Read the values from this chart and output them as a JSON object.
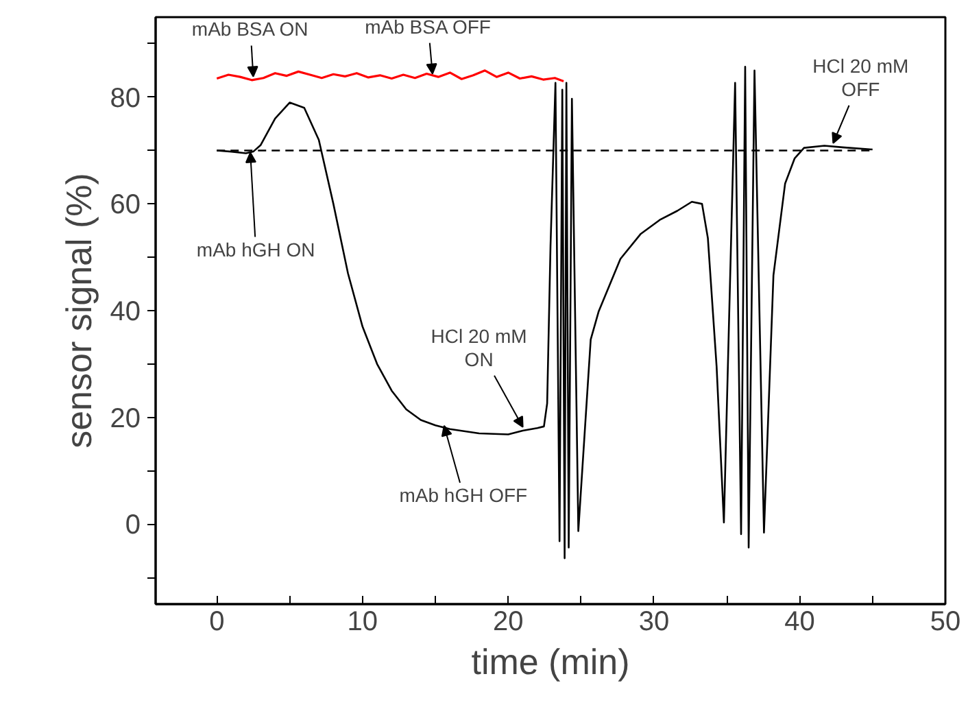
{
  "chart_data": {
    "type": "line",
    "xlabel": "time (min)",
    "ylabel": "sensor signal (%)",
    "xlim": [
      -4.2,
      50
    ],
    "ylim": [
      -15,
      95
    ],
    "xticks": [
      0,
      {
        "value": 5,
        "label": null
      },
      10,
      {
        "value": 15,
        "label": null
      },
      20,
      {
        "value": 25,
        "label": null
      },
      30,
      {
        "value": 35,
        "label": null
      },
      40,
      {
        "value": 45,
        "label": null
      },
      50
    ],
    "yticks": [
      {
        "value": -10,
        "label": null
      },
      0,
      {
        "value": 10,
        "label": null
      },
      20,
      {
        "value": 30,
        "label": null
      },
      40,
      {
        "value": 50,
        "label": null
      },
      60,
      {
        "value": 70,
        "label": null
      },
      80,
      {
        "value": 90,
        "label": null
      }
    ],
    "grid": false,
    "marker": "none",
    "line_style": "solid",
    "series": [
      {
        "color": "#ff0000",
        "x": [
          0,
          0.8,
          1.6,
          2.4,
          3.2,
          4,
          4.8,
          5.6,
          6.4,
          7.2,
          8,
          8.8,
          9.6,
          10.4,
          11.2,
          12,
          12.8,
          13.6,
          14.4,
          15.2,
          16,
          16.8,
          17.6,
          18.4,
          19.2,
          20,
          20.8,
          21.6,
          22.4,
          23.2,
          23.8
        ],
        "values": [
          83.5,
          84.2,
          83.8,
          83.2,
          83.6,
          84.5,
          84,
          84.8,
          84.2,
          83.6,
          84.3,
          83.9,
          84.5,
          83.7,
          84.1,
          83.5,
          84.2,
          83.6,
          84.4,
          83.8,
          84.6,
          83.4,
          84.1,
          85,
          83.8,
          84.6,
          83.5,
          83.9,
          83.3,
          83.6,
          83
        ]
      },
      {
        "color": "#000000",
        "x": [
          0,
          1,
          2,
          2.5,
          3,
          4,
          5,
          6,
          7,
          8,
          9,
          10,
          11,
          12,
          13,
          14,
          15,
          16,
          18,
          20,
          21,
          22,
          22.45,
          22.67,
          22.9,
          23.24,
          23.52,
          23.71,
          23.87,
          23.99,
          24.15,
          24.37,
          24.81,
          25.66,
          26.2,
          27.7,
          29.1,
          30.4,
          31.6,
          32.6,
          33.3,
          33.7,
          34.3,
          34.8,
          35.57,
          35.98,
          36.26,
          36.5,
          36.9,
          37.55,
          38.2,
          39.0,
          39.65,
          40.3,
          41.7,
          42.95,
          45
        ],
        "values": [
          70,
          69.8,
          69.5,
          69.8,
          71,
          76,
          79,
          78,
          72,
          60,
          47,
          37,
          30,
          25,
          21.5,
          19.5,
          18.5,
          17.8,
          17,
          16.8,
          17.5,
          18,
          18.3,
          22.6,
          52,
          82.7,
          -3.2,
          81.4,
          -6.4,
          82.7,
          -4.4,
          79.7,
          -1.3,
          34.6,
          39.8,
          49.7,
          54.4,
          57,
          58.7,
          60.4,
          60,
          53.6,
          29.5,
          0.3,
          82.7,
          -1.9,
          85.7,
          -4.4,
          85,
          -1.6,
          46.6,
          63.8,
          68.5,
          70.5,
          70.9,
          70.6,
          70.2
        ]
      }
    ],
    "ref_lines": [
      {
        "axis": "y",
        "value": 70,
        "color": "#000000",
        "line_style": "dashed"
      }
    ],
    "annotations": [
      {
        "text": "mAb BSA ON",
        "x": 2.5,
        "y": 83.5
      },
      {
        "text": "mAb BSA OFF",
        "x": 14.8,
        "y": 84
      },
      {
        "text": "mAb hGH ON",
        "x": 2.3,
        "y": 70
      },
      {
        "text": "HCl 20 mM\nON",
        "x": 21,
        "y": 17.8
      },
      {
        "text": "mAb hGH OFF",
        "x": 15.6,
        "y": 18.8
      },
      {
        "text": "HCl 20 mM\nOFF",
        "x": 42.3,
        "y": 71
      }
    ]
  }
}
